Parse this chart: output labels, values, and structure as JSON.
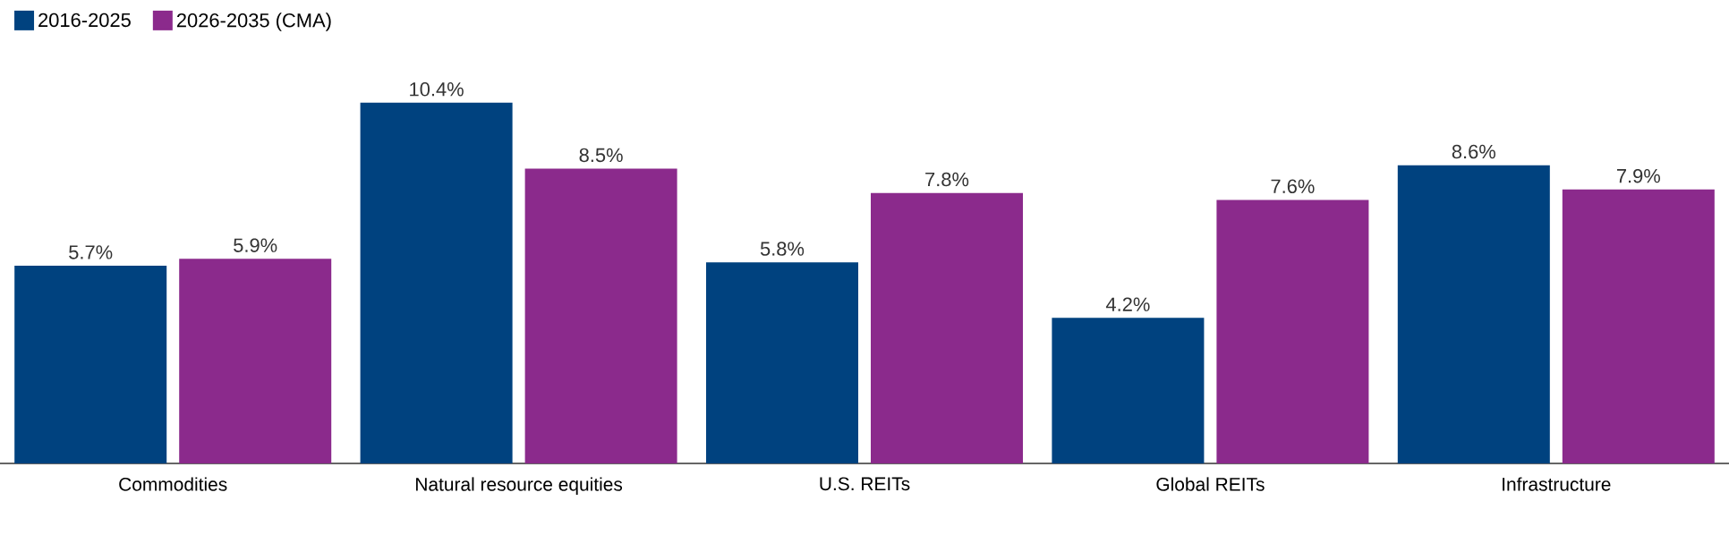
{
  "chart_data": {
    "type": "bar",
    "categories": [
      "Commodities",
      "Natural resource equities",
      "U.S. REITs",
      "Global REITs",
      "Infrastructure"
    ],
    "series": [
      {
        "name": "2016-2025",
        "color": "#00427f",
        "values": [
          5.7,
          10.4,
          5.8,
          4.2,
          8.6
        ],
        "value_labels": [
          "5.7%",
          "10.4%",
          "5.8%",
          "4.2%",
          "8.6%"
        ]
      },
      {
        "name": "2026-2035 (CMA)",
        "color": "#8b2a8c",
        "values": [
          5.9,
          8.5,
          7.8,
          7.6,
          7.9
        ],
        "value_labels": [
          "5.9%",
          "8.5%",
          "7.8%",
          "7.6%",
          "7.9%"
        ]
      }
    ],
    "legend": "top left"
  }
}
